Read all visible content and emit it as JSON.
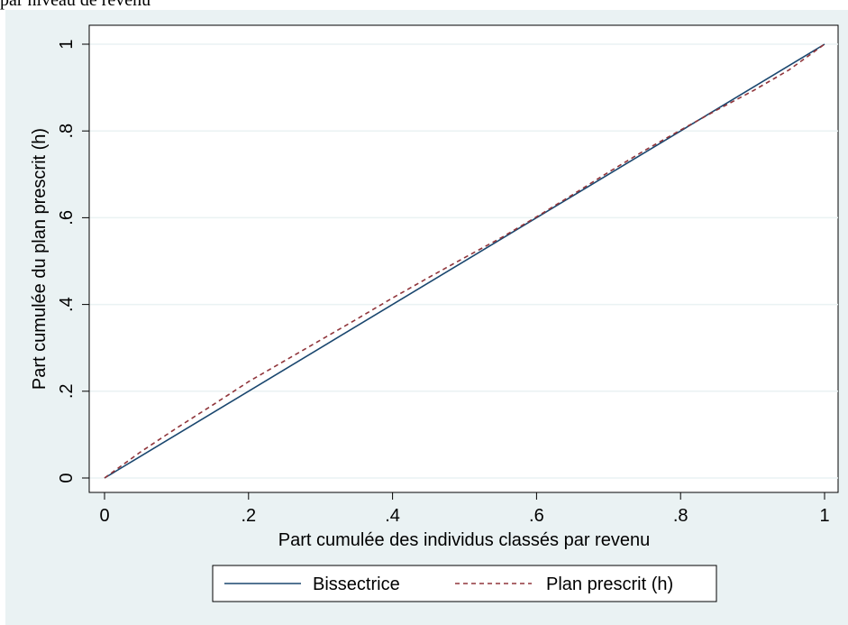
{
  "caption": "par niveau de revenu",
  "chart_data": {
    "type": "line",
    "xlabel": "Part cumulée des individus classés par revenu",
    "ylabel": "Part cumulée du plan prescrit (h)",
    "xlim": [
      0,
      1
    ],
    "ylim": [
      0,
      1
    ],
    "xticks": [
      0,
      0.2,
      0.4,
      0.6,
      0.8,
      1
    ],
    "xtick_labels": [
      "0",
      ".2",
      ".4",
      ".6",
      ".8",
      "1"
    ],
    "yticks": [
      0,
      0.2,
      0.4,
      0.6,
      0.8,
      1
    ],
    "ytick_labels": [
      "0",
      ".2",
      ".4",
      ".6",
      ".8",
      "1"
    ],
    "grid": true,
    "legend_position": "bottom",
    "series": [
      {
        "name": "Bissectrice",
        "color": "#1a476f",
        "style": "solid",
        "x": [
          0,
          1
        ],
        "y": [
          0,
          1
        ]
      },
      {
        "name": "Plan prescrit (h)",
        "color": "#90353b",
        "style": "dashed",
        "x": [
          0,
          0.05,
          0.1,
          0.15,
          0.2,
          0.25,
          0.3,
          0.35,
          0.4,
          0.45,
          0.5,
          0.55,
          0.6,
          0.65,
          0.7,
          0.75,
          0.8,
          0.85,
          0.9,
          0.95,
          1
        ],
        "y": [
          0,
          0.06,
          0.115,
          0.168,
          0.222,
          0.27,
          0.318,
          0.366,
          0.415,
          0.462,
          0.508,
          0.553,
          0.602,
          0.653,
          0.705,
          0.755,
          0.802,
          0.848,
          0.892,
          0.94,
          1
        ]
      }
    ]
  }
}
